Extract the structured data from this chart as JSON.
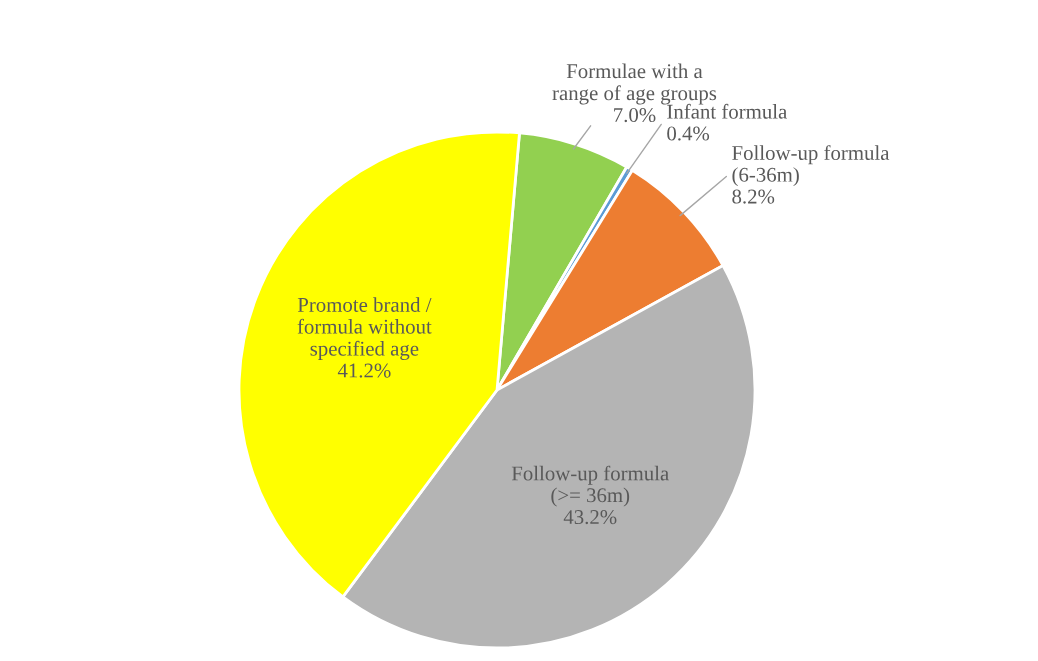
{
  "chart_data": {
    "type": "pie",
    "categories": [
      "Formulae with a\nrange of age groups",
      "Infant formula",
      "Follow-up formula\n(6-36m)",
      "Follow-up formula\n(>= 36m)",
      "Promote brand /\nformula without\nspecified age"
    ],
    "values": [
      7.0,
      0.4,
      8.2,
      43.2,
      41.2
    ],
    "colors": [
      "#92d050",
      "#5b9bd5",
      "#ed7d31",
      "#b4b4b4",
      "#ffff00"
    ],
    "value_labels": [
      "7.0%",
      "0.4%",
      "8.2%",
      "43.2%",
      "41.2%"
    ],
    "legend": false
  }
}
